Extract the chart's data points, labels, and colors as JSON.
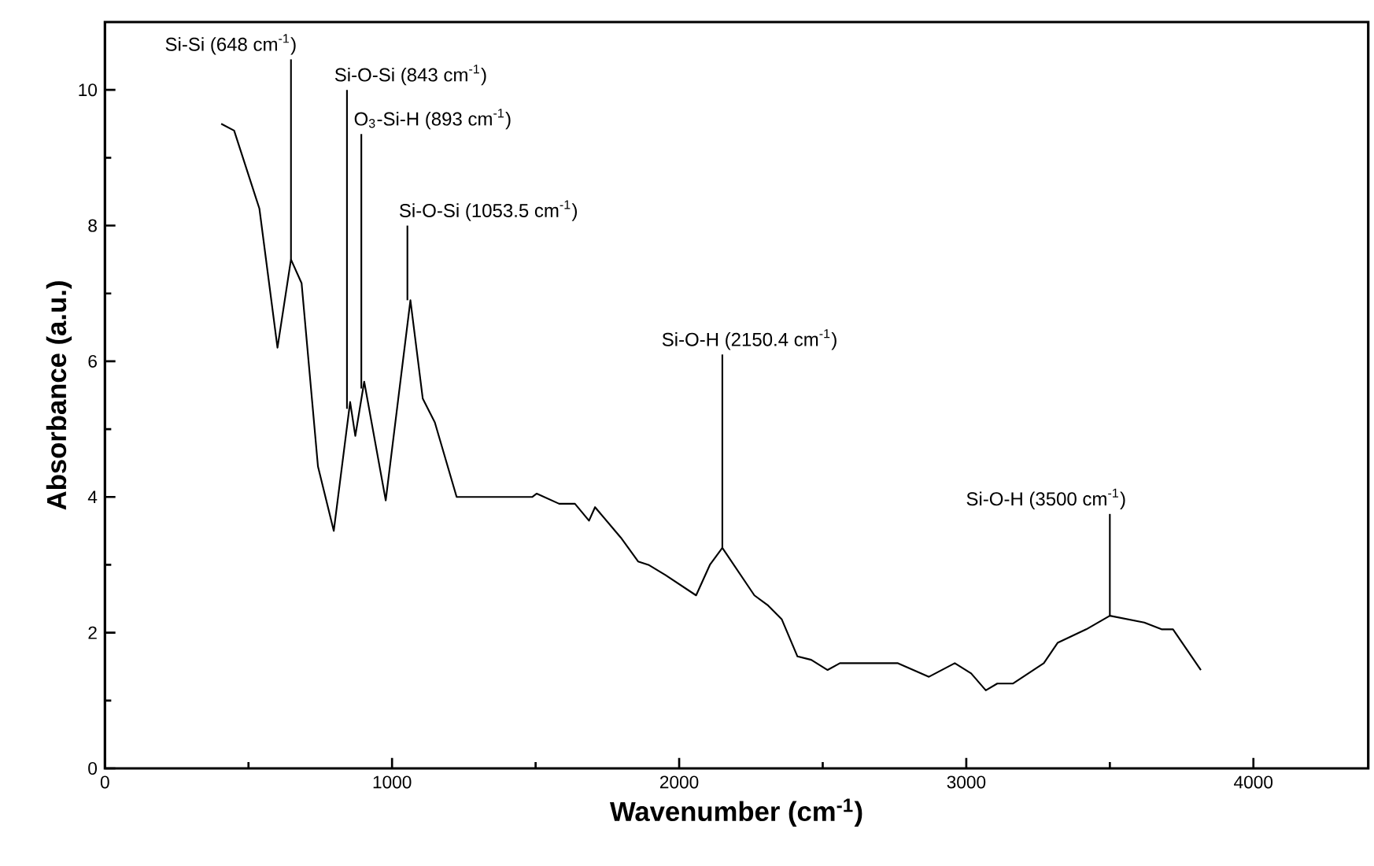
{
  "chart_data": {
    "type": "line",
    "xlabel": "Wavenumber (cm$^{-1}$)",
    "ylabel": "Absorbance (a.u.)",
    "xlim": [
      0,
      4400
    ],
    "ylim": [
      0,
      11
    ],
    "xticks": [
      0,
      1000,
      2000,
      3000,
      4000
    ],
    "yticks": [
      0,
      2,
      4,
      6,
      8,
      10
    ],
    "grid": false,
    "marker": "none",
    "line_style": "solid",
    "series": [
      {
        "color": "#000000",
        "x": [
          405,
          450,
          538,
          601,
          648,
          685,
          742,
          797,
          854,
          872,
          903,
          978,
          1064,
          1107,
          1149,
          1225,
          1488,
          1504,
          1582,
          1637,
          1686,
          1707,
          1797,
          1857,
          1893,
          1952,
          2059,
          2107,
          2150.4,
          2262,
          2310,
          2357,
          2412,
          2460,
          2517,
          2560,
          2762,
          2870,
          2960,
          3017,
          3068,
          3108,
          3162,
          3270,
          3318,
          3418,
          3500,
          3620,
          3680,
          3720,
          3817
        ],
        "values": [
          9.5,
          9.4,
          8.25,
          6.2,
          7.5,
          7.15,
          4.45,
          3.5,
          5.4,
          4.9,
          5.7,
          3.95,
          6.9,
          5.45,
          5.1,
          4.0,
          4.0,
          4.05,
          3.9,
          3.9,
          3.65,
          3.85,
          3.4,
          3.05,
          3.0,
          2.85,
          2.55,
          3.0,
          3.25,
          2.55,
          2.4,
          2.2,
          1.65,
          1.6,
          1.45,
          1.55,
          1.55,
          1.35,
          1.55,
          1.4,
          1.15,
          1.25,
          1.25,
          1.55,
          1.85,
          2.05,
          2.25,
          2.15,
          2.05,
          2.05,
          1.45
        ]
      }
    ],
    "annotations": [
      {
        "text": "Si-Si (648 cm$^{-1}$)",
        "x": 648,
        "y": 7.5
      },
      {
        "text": "Si-O-Si (843 cm$^{-1}$)",
        "x": 843,
        "y": 5.3
      },
      {
        "text": "O$_{3}$-Si-H (893 cm$^{-1}$)",
        "x": 893,
        "y": 5.6
      },
      {
        "text": "Si-O-Si (1053.5 cm$^{-1}$)",
        "x": 1053.5,
        "y": 6.9
      },
      {
        "text": "Si-O-H (2150.4 cm$^{-1}$)",
        "x": 2150.4,
        "y": 3.25
      },
      {
        "text": "Si-O-H (3500 cm$^{-1}$)",
        "x": 3500,
        "y": 2.25
      }
    ]
  }
}
